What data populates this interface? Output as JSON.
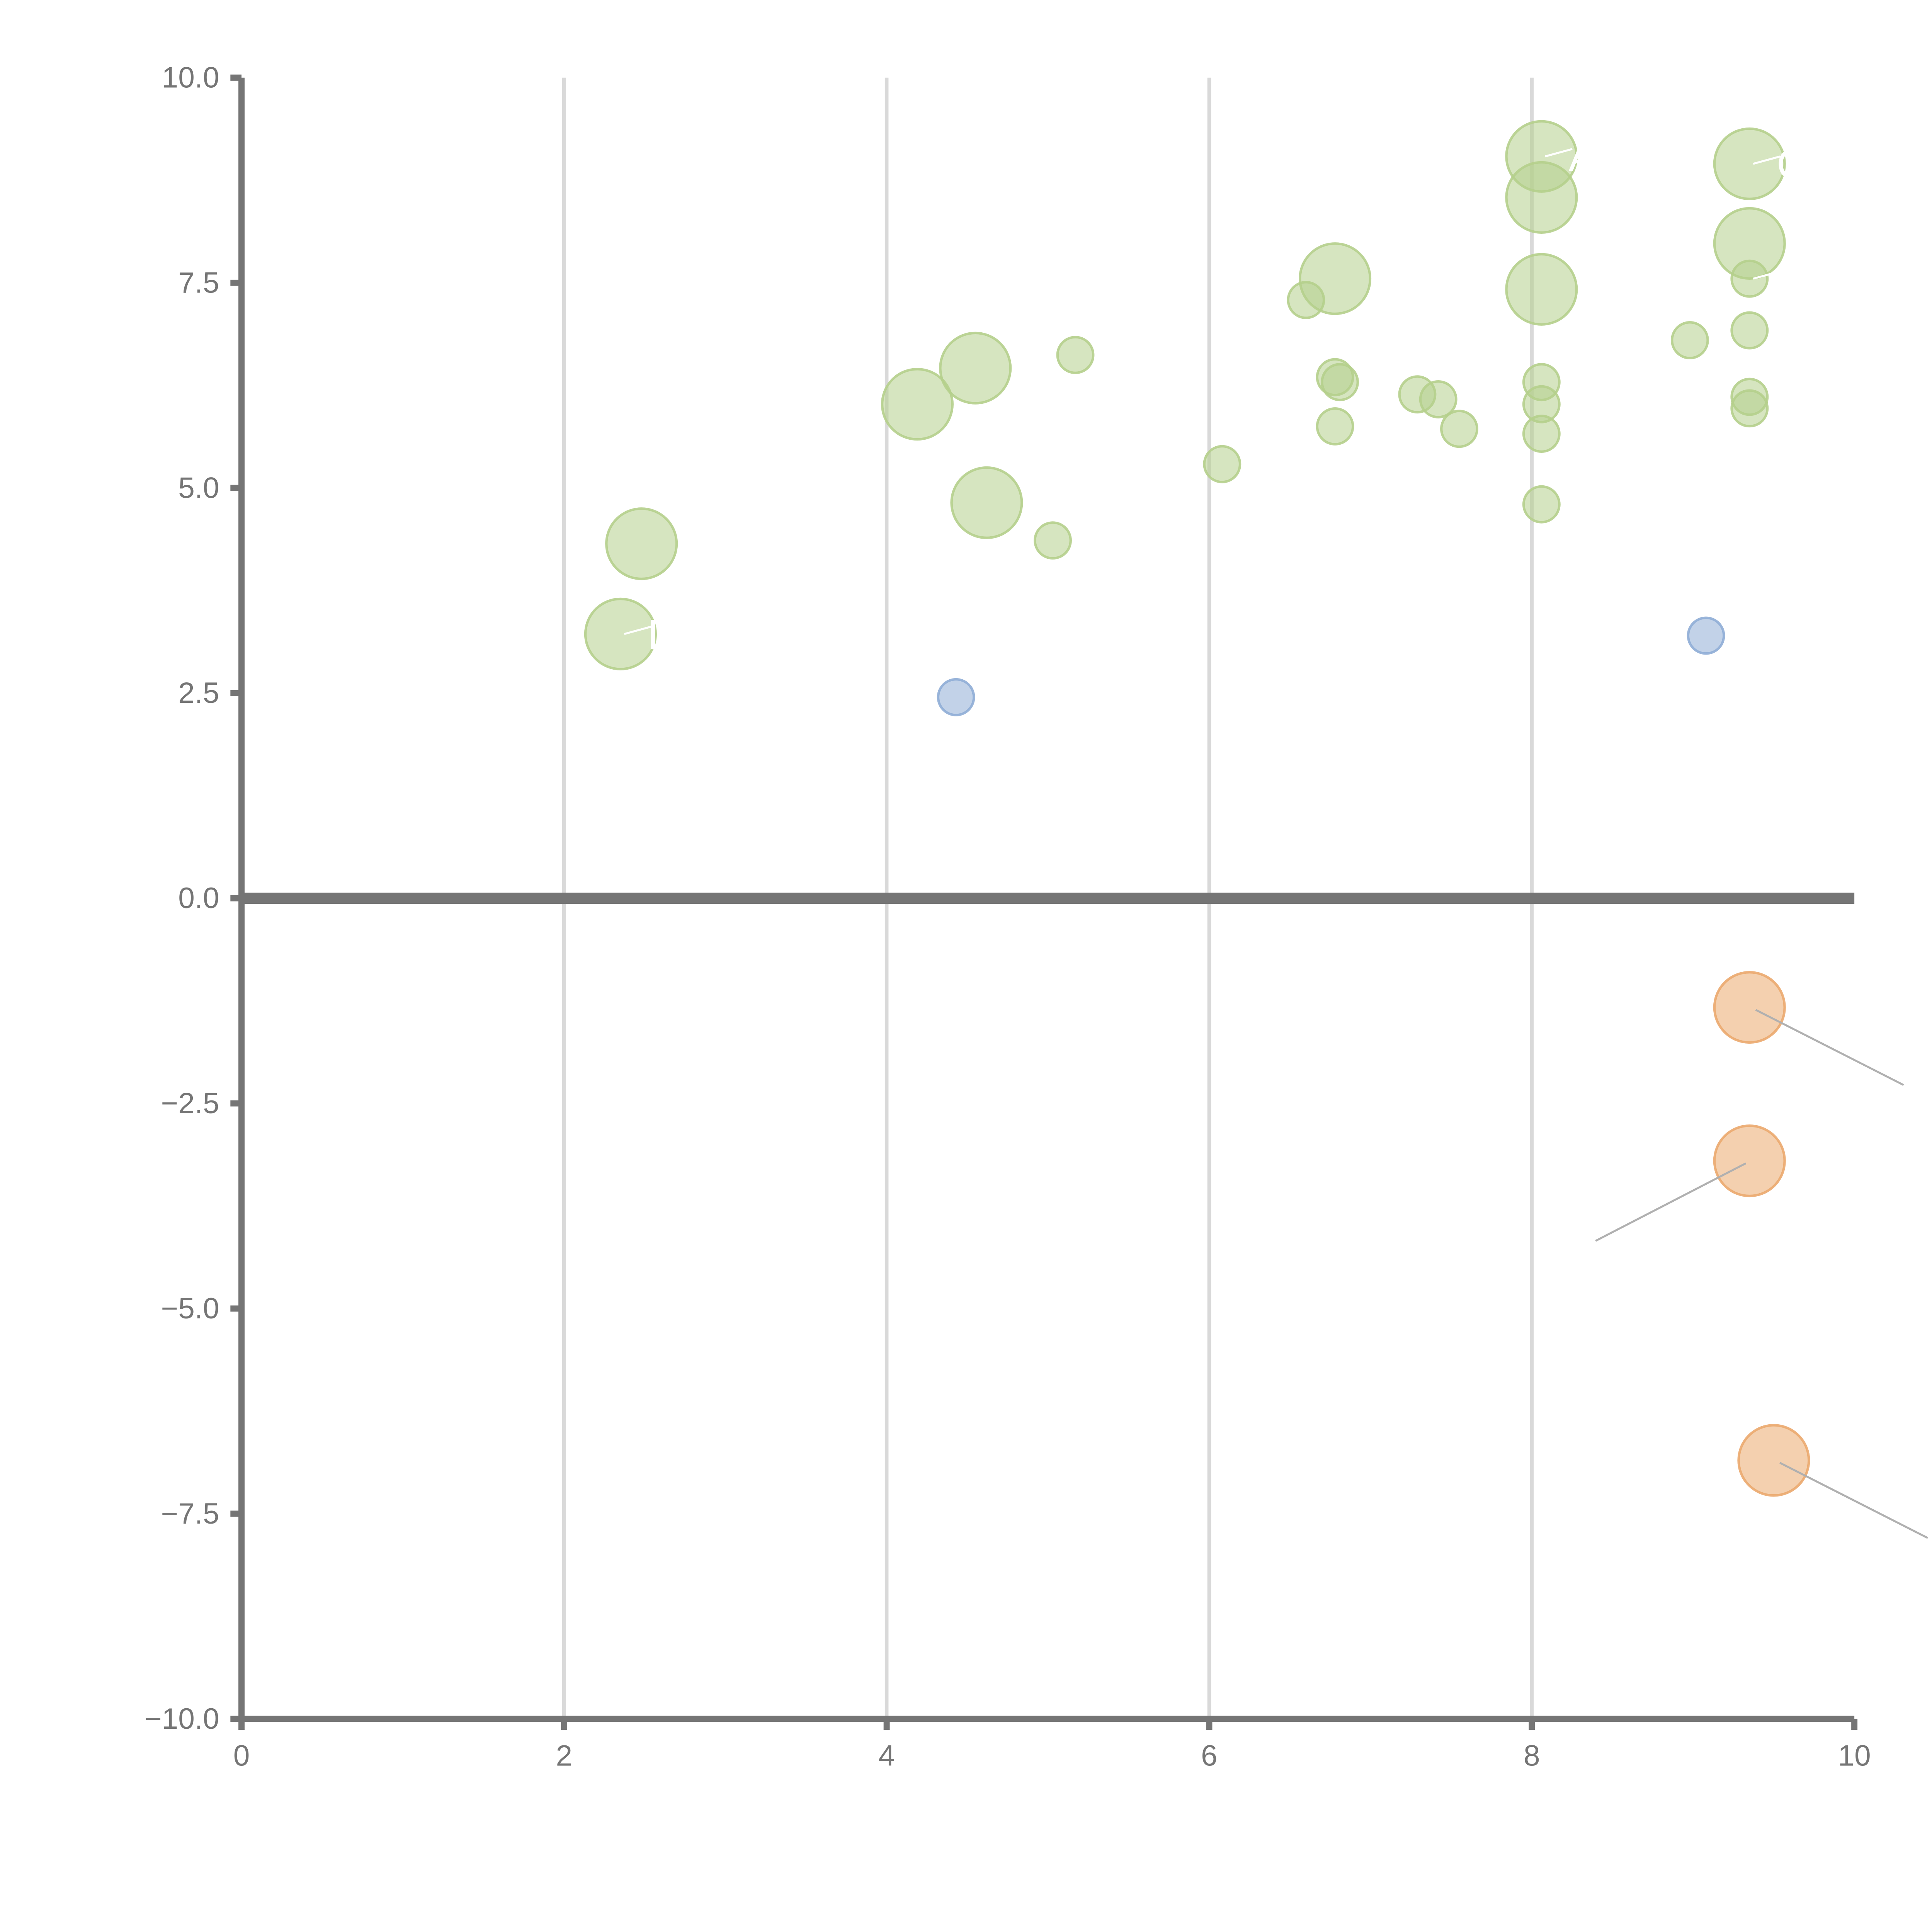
{
  "chart_data": {
    "type": "scatter",
    "title": "",
    "xlabel": "",
    "ylabel": "",
    "xlim": [
      0,
      10
    ],
    "ylim": [
      -10,
      10
    ],
    "x_ticks": [
      "0",
      "2",
      "4",
      "6",
      "8",
      "10"
    ],
    "y_ticks": [
      "10.0",
      "7.5",
      "5.0",
      "2.5",
      "0.0",
      "−2.5",
      "−5.0",
      "−7.5",
      "−10.0"
    ],
    "grid": "vertical lines only",
    "legend": "none",
    "colors": {
      "green": "#b5cf8c",
      "blue": "#8fadd6",
      "orange": "#eba96e",
      "leader_light": "#ffffff",
      "leader_dark": "#b0b0b0"
    },
    "series": [
      {
        "color": "green",
        "points": [
          {
            "x": 2.35,
            "y": 3.22,
            "size": "large",
            "label": "L"
          },
          {
            "x": 2.48,
            "y": 4.32,
            "size": "large"
          },
          {
            "x": 4.19,
            "y": 6.02,
            "size": "large"
          },
          {
            "x": 4.55,
            "y": 6.46,
            "size": "large"
          },
          {
            "x": 4.62,
            "y": 4.82,
            "size": "large"
          },
          {
            "x": 5.03,
            "y": 4.36,
            "size": "small"
          },
          {
            "x": 5.17,
            "y": 6.62,
            "size": "small"
          },
          {
            "x": 6.08,
            "y": 5.29,
            "size": "small"
          },
          {
            "x": 6.6,
            "y": 7.29,
            "size": "small"
          },
          {
            "x": 6.78,
            "y": 7.55,
            "size": "large"
          },
          {
            "x": 6.78,
            "y": 6.35,
            "size": "small"
          },
          {
            "x": 6.81,
            "y": 6.29,
            "size": "small"
          },
          {
            "x": 6.78,
            "y": 5.75,
            "size": "small"
          },
          {
            "x": 7.29,
            "y": 6.14,
            "size": "small"
          },
          {
            "x": 7.42,
            "y": 6.08,
            "size": "small"
          },
          {
            "x": 7.55,
            "y": 5.72,
            "size": "small"
          },
          {
            "x": 8.06,
            "y": 9.04,
            "size": "large",
            "label": "A"
          },
          {
            "x": 8.06,
            "y": 8.54,
            "size": "large"
          },
          {
            "x": 8.06,
            "y": 7.42,
            "size": "large"
          },
          {
            "x": 8.06,
            "y": 6.29,
            "size": "small"
          },
          {
            "x": 8.06,
            "y": 6.02,
            "size": "small"
          },
          {
            "x": 8.06,
            "y": 5.66,
            "size": "small"
          },
          {
            "x": 8.06,
            "y": 4.8,
            "size": "small"
          },
          {
            "x": 8.98,
            "y": 6.8,
            "size": "small"
          },
          {
            "x": 9.35,
            "y": 8.95,
            "size": "large",
            "label": "CR"
          },
          {
            "x": 9.35,
            "y": 7.98,
            "size": "large"
          },
          {
            "x": 9.35,
            "y": 7.55,
            "size": "small",
            "label": "K"
          },
          {
            "x": 9.35,
            "y": 6.92,
            "size": "small"
          },
          {
            "x": 9.35,
            "y": 6.11,
            "size": "small"
          },
          {
            "x": 9.35,
            "y": 5.97,
            "size": "small"
          }
        ]
      },
      {
        "color": "blue",
        "points": [
          {
            "x": 4.43,
            "y": 2.45,
            "size": "small"
          },
          {
            "x": 9.08,
            "y": 3.2,
            "size": "small"
          }
        ]
      },
      {
        "color": "orange",
        "points": [
          {
            "x": 9.35,
            "y": -1.33,
            "size": "large"
          },
          {
            "x": 9.35,
            "y": -3.2,
            "size": "large"
          },
          {
            "x": 9.5,
            "y": -6.85,
            "size": "large"
          }
        ]
      }
    ]
  }
}
